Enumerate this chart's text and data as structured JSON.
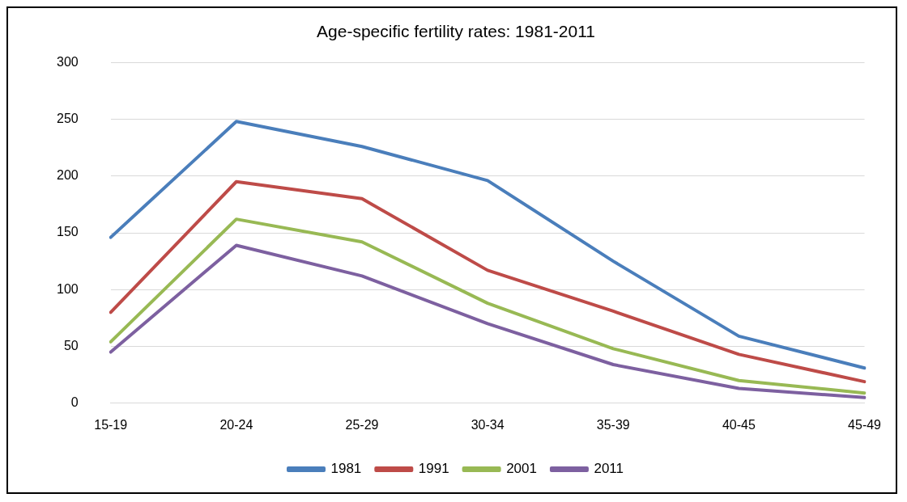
{
  "chart_data": {
    "type": "line",
    "title": "Age-specific fertility rates: 1981-2011",
    "categories": [
      "15-19",
      "20-24",
      "25-29",
      "30-34",
      "35-39",
      "40-45",
      "45-49"
    ],
    "series": [
      {
        "name": "1981",
        "color": "#4a7ebb",
        "values": [
          146,
          248,
          226,
          196,
          125,
          59,
          31
        ]
      },
      {
        "name": "1991",
        "color": "#be4b48",
        "values": [
          80,
          195,
          180,
          117,
          81,
          43,
          19
        ]
      },
      {
        "name": "2001",
        "color": "#98b954",
        "values": [
          54,
          162,
          142,
          88,
          48,
          20,
          9
        ]
      },
      {
        "name": "2011",
        "color": "#7d60a0",
        "values": [
          45,
          139,
          112,
          70,
          34,
          13,
          5
        ]
      }
    ],
    "ylim": [
      0,
      300
    ],
    "yticks": [
      0,
      50,
      100,
      150,
      200,
      250,
      300
    ],
    "grid": "y",
    "legend": "bottom",
    "marker": "none",
    "line_style": "solid"
  }
}
